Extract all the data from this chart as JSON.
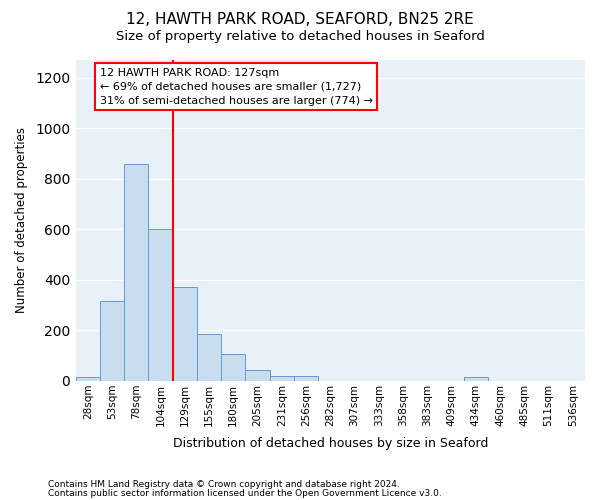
{
  "title1": "12, HAWTH PARK ROAD, SEAFORD, BN25 2RE",
  "title2": "Size of property relative to detached houses in Seaford",
  "xlabel": "Distribution of detached houses by size in Seaford",
  "ylabel": "Number of detached properties",
  "bin_labels": [
    "28sqm",
    "53sqm",
    "78sqm",
    "104sqm",
    "129sqm",
    "155sqm",
    "180sqm",
    "205sqm",
    "231sqm",
    "256sqm",
    "282sqm",
    "307sqm",
    "333sqm",
    "358sqm",
    "383sqm",
    "409sqm",
    "434sqm",
    "460sqm",
    "485sqm",
    "511sqm",
    "536sqm"
  ],
  "bar_heights": [
    15,
    315,
    860,
    600,
    370,
    185,
    105,
    45,
    20,
    20,
    0,
    0,
    0,
    0,
    0,
    0,
    15,
    0,
    0,
    0,
    0
  ],
  "bar_color": "#c8ddf0",
  "bar_edge_color": "#6699cc",
  "vline_color": "red",
  "annotation_text": "12 HAWTH PARK ROAD: 127sqm\n← 69% of detached houses are smaller (1,727)\n31% of semi-detached houses are larger (774) →",
  "annotation_box_color": "white",
  "annotation_box_edge": "red",
  "ylim": [
    0,
    1270
  ],
  "yticks": [
    0,
    200,
    400,
    600,
    800,
    1000,
    1200
  ],
  "footnote1": "Contains HM Land Registry data © Crown copyright and database right 2024.",
  "footnote2": "Contains public sector information licensed under the Open Government Licence v3.0.",
  "background_color": "#ffffff",
  "plot_bg_color": "#e8f0f8",
  "grid_color": "#ffffff",
  "title1_fontsize": 11,
  "title2_fontsize": 9.5
}
